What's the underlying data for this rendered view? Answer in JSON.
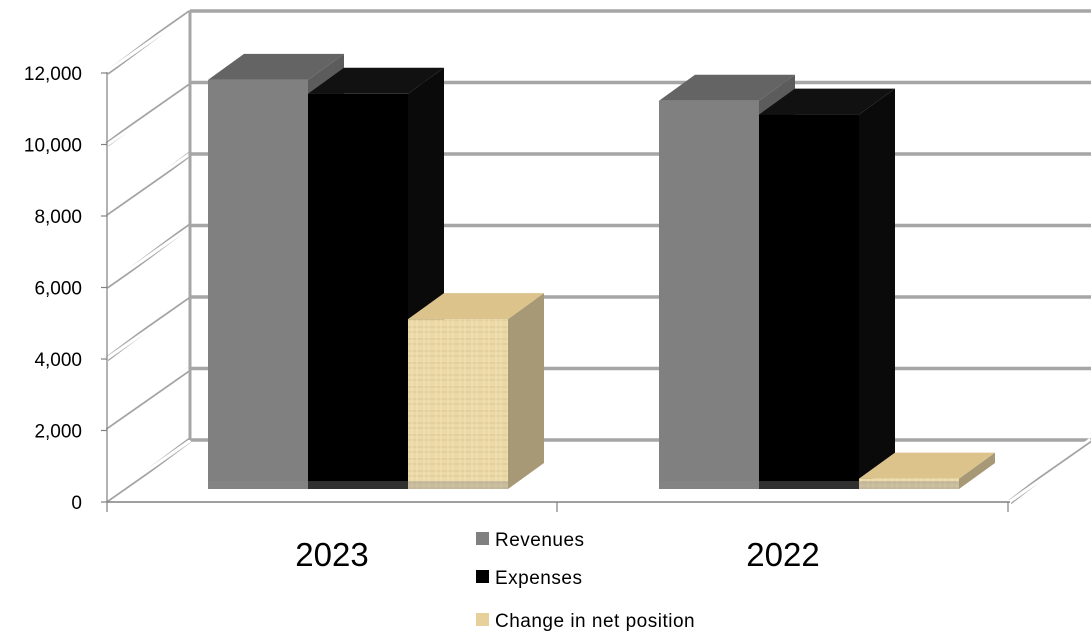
{
  "chart_data": {
    "type": "bar",
    "categories": [
      "2023",
      "2022"
    ],
    "series": [
      {
        "name": "Revenues",
        "values": [
          11800,
          11200
        ],
        "color": "#808080"
      },
      {
        "name": "Expenses",
        "values": [
          11400,
          10800
        ],
        "color": "#000000"
      },
      {
        "name": "Change in net position",
        "values": [
          4900,
          300
        ],
        "color": "#e8d4a2"
      }
    ],
    "ylim": [
      0,
      12000
    ],
    "yticks": [
      "0",
      "2,000",
      "4,000",
      "6,000",
      "8,000",
      "10,000",
      "12,000"
    ],
    "grid": true,
    "legend": "bottom-center",
    "style": "3d-clustered-column"
  }
}
